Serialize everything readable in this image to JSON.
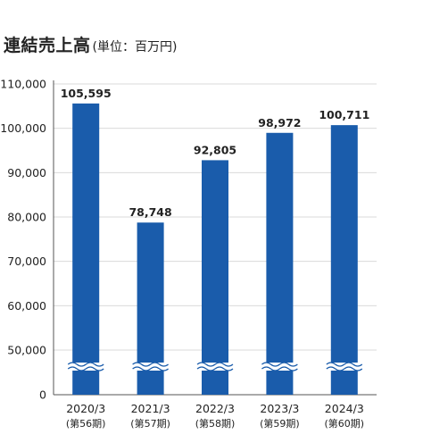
{
  "header": {
    "title": "連結売上高",
    "unit": "(単位：百万円)"
  },
  "colors": {
    "bar": "#1a5cab",
    "axis": "#555555",
    "grid": "#d9d9d9",
    "break_mark": "#1a5cab"
  },
  "chart_data": {
    "type": "bar",
    "title": "連結売上高",
    "subtitle": "(単位：百万円)",
    "categories": [
      "2020/3",
      "2021/3",
      "2022/3",
      "2023/3",
      "2024/3"
    ],
    "category_sublabels": [
      "(第56期)",
      "(第57期)",
      "(第58期)",
      "(第59期)",
      "(第60期)"
    ],
    "values": [
      105595,
      78748,
      92805,
      98972,
      100711
    ],
    "value_labels": [
      "105,595",
      "78,748",
      "92,805",
      "98,972",
      "100,711"
    ],
    "y_ticks": [
      0,
      50000,
      60000,
      70000,
      80000,
      90000,
      100000,
      110000
    ],
    "y_tick_labels": [
      "0",
      "50,000",
      "60,000",
      "70,000",
      "80,000",
      "90,000",
      "100,000",
      "110,000"
    ],
    "ylim": [
      40000,
      110000
    ],
    "axis_break": true,
    "grid": true,
    "xlabel": "",
    "ylabel": ""
  }
}
